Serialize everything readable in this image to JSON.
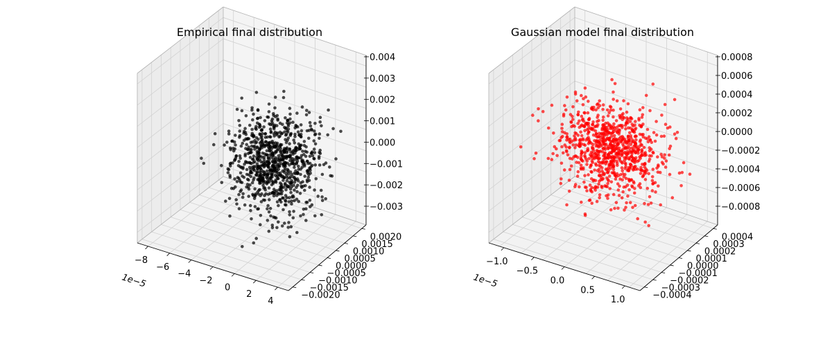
{
  "chart_data": [
    {
      "type": "scatter",
      "title": "Empirical final distribution",
      "marker_color": "#000000",
      "x_offset_label": "1e−5",
      "x_ticks": [
        "−8",
        "−6",
        "−4",
        "−2",
        "0",
        "2",
        "4"
      ],
      "y_ticks": [
        "−0.0020",
        "−0.0015",
        "−0.0010",
        "−0.0005",
        "0.0000",
        "0.0005",
        "0.0010",
        "0.0015",
        "0.0020"
      ],
      "z_ticks": [
        "−0.003",
        "−0.002",
        "−0.001",
        "0.000",
        "0.001",
        "0.002",
        "0.003",
        "0.004"
      ],
      "xlim": [
        -8,
        4.5
      ],
      "ylim": [
        -0.0022,
        0.0022
      ],
      "zlim": [
        -0.0035,
        0.0042
      ],
      "point_count": 900,
      "spread": [
        1.67e-05,
        0.00061,
        0.00105
      ],
      "grid": true
    },
    {
      "type": "scatter",
      "title": "Gaussian model final distribution",
      "marker_color": "#ff0000",
      "x_offset_label": "1e−5",
      "x_ticks": [
        "−1.0",
        "−0.5",
        "0.0",
        "0.5",
        "1.0"
      ],
      "y_ticks": [
        "−0.0004",
        "−0.0003",
        "−0.0002",
        "−0.0001",
        "0.0000",
        "0.0001",
        "0.0002",
        "0.0003",
        "0.0004"
      ],
      "z_ticks": [
        "−0.0008",
        "−0.0006",
        "−0.0004",
        "−0.0002",
        "0.0000",
        "0.0002",
        "0.0004",
        "0.0006",
        "0.0008"
      ],
      "xlim": [
        -1.2,
        1.1
      ],
      "ylim": [
        -0.00043,
        0.00043
      ],
      "zlim": [
        -0.00082,
        0.00082
      ],
      "point_count": 900,
      "spread": [
        3.5e-06,
        0.000105,
        0.00021
      ],
      "grid": true
    }
  ]
}
